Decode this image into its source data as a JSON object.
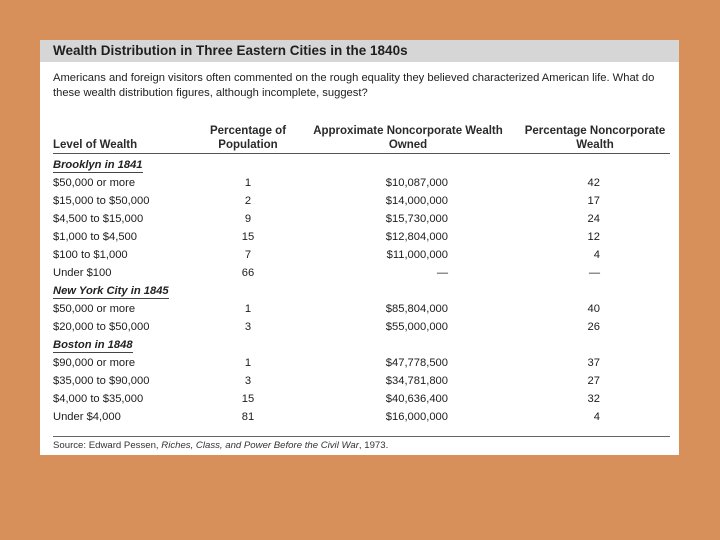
{
  "title": "Wealth Distribution in Three Eastern Cities in the 1840s",
  "intro": "Americans and foreign visitors often commented on the rough equality they believed characterized American life. What do these wealth distribution figures, although incomplete, suggest?",
  "columns": {
    "level": "Level of Wealth",
    "population": "Percentage of Population",
    "owned": "Approximate Noncorporate Wealth Owned",
    "percentage": "Percentage Noncorporate Wealth"
  },
  "sections": [
    {
      "label": "Brooklyn in 1841",
      "rows": [
        {
          "level": "$50,000 or more",
          "population": "1",
          "owned": "$10,087,000",
          "percentage": "42"
        },
        {
          "level": "$15,000 to $50,000",
          "population": "2",
          "owned": "$14,000,000",
          "percentage": "17"
        },
        {
          "level": "$4,500 to $15,000",
          "population": "9",
          "owned": "$15,730,000",
          "percentage": "24"
        },
        {
          "level": "$1,000 to $4,500",
          "population": "15",
          "owned": "$12,804,000",
          "percentage": "12"
        },
        {
          "level": "$100 to $1,000",
          "population": "7",
          "owned": "$11,000,000",
          "percentage": "4"
        },
        {
          "level": "Under $100",
          "population": "66",
          "owned": "—",
          "percentage": "—"
        }
      ]
    },
    {
      "label": "New York City in 1845",
      "rows": [
        {
          "level": "$50,000 or more",
          "population": "1",
          "owned": "$85,804,000",
          "percentage": "40"
        },
        {
          "level": "$20,000 to $50,000",
          "population": "3",
          "owned": "$55,000,000",
          "percentage": "26"
        }
      ]
    },
    {
      "label": "Boston in 1848",
      "rows": [
        {
          "level": "$90,000 or more",
          "population": "1",
          "owned": "$47,778,500",
          "percentage": "37"
        },
        {
          "level": "$35,000 to $90,000",
          "population": "3",
          "owned": "$34,781,800",
          "percentage": "27"
        },
        {
          "level": "$4,000 to $35,000",
          "population": "15",
          "owned": "$40,636,400",
          "percentage": "32"
        },
        {
          "level": "Under $4,000",
          "population": "81",
          "owned": "$16,000,000",
          "percentage": "4"
        }
      ]
    }
  ],
  "source": {
    "prefix": "Source: Edward Pessen, ",
    "work": "Riches, Class, and Power Before the Civil War",
    "suffix": ", 1973."
  },
  "colors": {
    "background": "#D8905A",
    "panel": "#FFFFFF",
    "title_bar": "#D6D6D6"
  }
}
